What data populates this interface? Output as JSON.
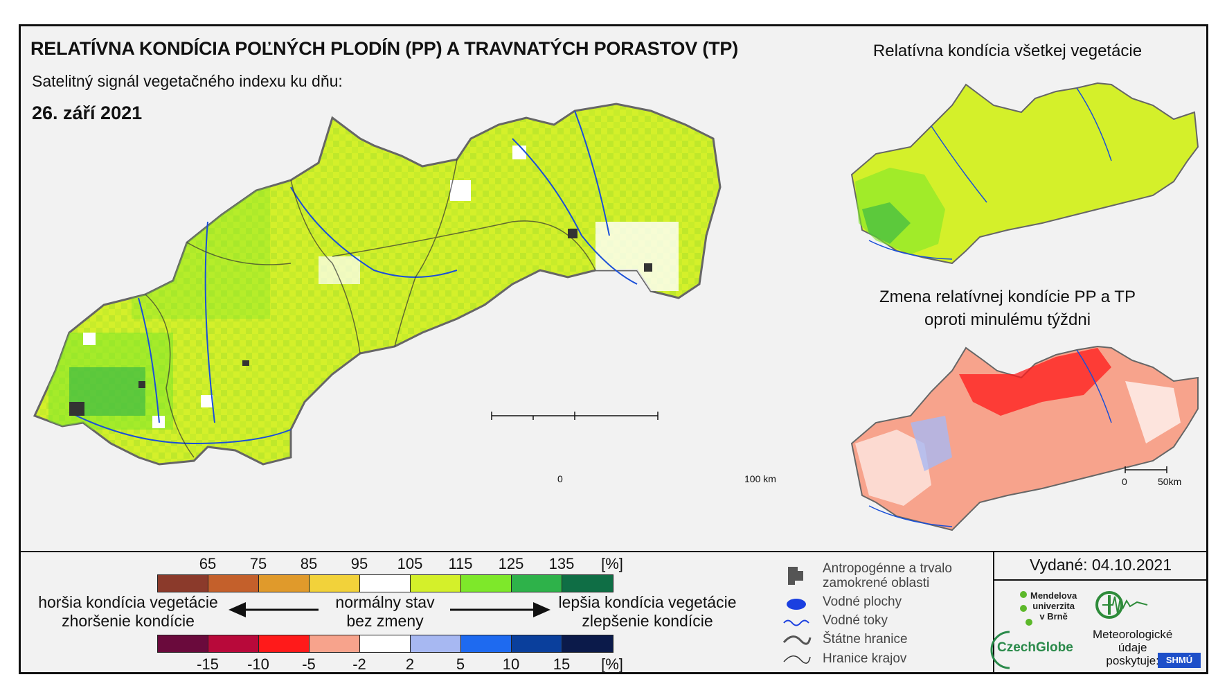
{
  "main": {
    "title": "RELATÍVNA KONDÍCIA POĽNÝCH PLODÍN (PP) A TRAVNATÝCH PORASTOV (TP)",
    "subtitle": "Satelitný signál vegetačného indexu ku dňu:",
    "date": "26. září 2021",
    "scale_start": "0",
    "scale_end": "100 km"
  },
  "side": {
    "top_title": "Relatívna kondícia všetkej vegetácie",
    "bottom_title_line1": "Zmena relatívnej kondície PP a TP",
    "bottom_title_line2": "oproti minulému týždni",
    "scale_start": "0",
    "scale_end": "50km"
  },
  "legend": {
    "condition_ticks": [
      "65",
      "75",
      "85",
      "95",
      "105",
      "115",
      "125",
      "135",
      "[%]"
    ],
    "condition_colors": [
      "#8b3a2b",
      "#c4602b",
      "#e09a2b",
      "#f2d23a",
      "#ffffff",
      "#d4f02a",
      "#7ee82a",
      "#2eb24a",
      "#0f6e45"
    ],
    "change_ticks": [
      "-15",
      "-10",
      "-5",
      "-2",
      "2",
      "5",
      "10",
      "15",
      "[%]"
    ],
    "change_colors": [
      "#6a0a3c",
      "#b8093a",
      "#ff1a1a",
      "#f7a38c",
      "#ffffff",
      "#a7b8f2",
      "#1e6af0",
      "#0a3f9c",
      "#0b1a4a"
    ],
    "worse_line1": "horšia kondícia vegetácie",
    "worse_line2": "zhoršenie kondície",
    "normal_line1": "normálny stav",
    "normal_line2": "bez zmeny",
    "better_line1": "lepšia kondícia vegetácie",
    "better_line2": "zlepšenie kondície"
  },
  "keys": {
    "anthropogenic_line1": "Antropogénne a trvalo",
    "anthropogenic_line2": "zamokrené oblasti",
    "water_bodies": "Vodné plochy",
    "rivers": "Vodné toky",
    "state_border": "Štátne hranice",
    "region_border": "Hranice krajov"
  },
  "issued": {
    "label": "Vydané: 04.10.2021",
    "mendel_line1": "Mendelova",
    "mendel_line2": "univerzita",
    "mendel_line3": "v Brně",
    "czechglobe": "CzechGlobe",
    "meteo_line1": "Meteorologické",
    "meteo_line2": "údaje",
    "meteo_line3": "poskytuje:",
    "shmu": "SHMÚ"
  }
}
